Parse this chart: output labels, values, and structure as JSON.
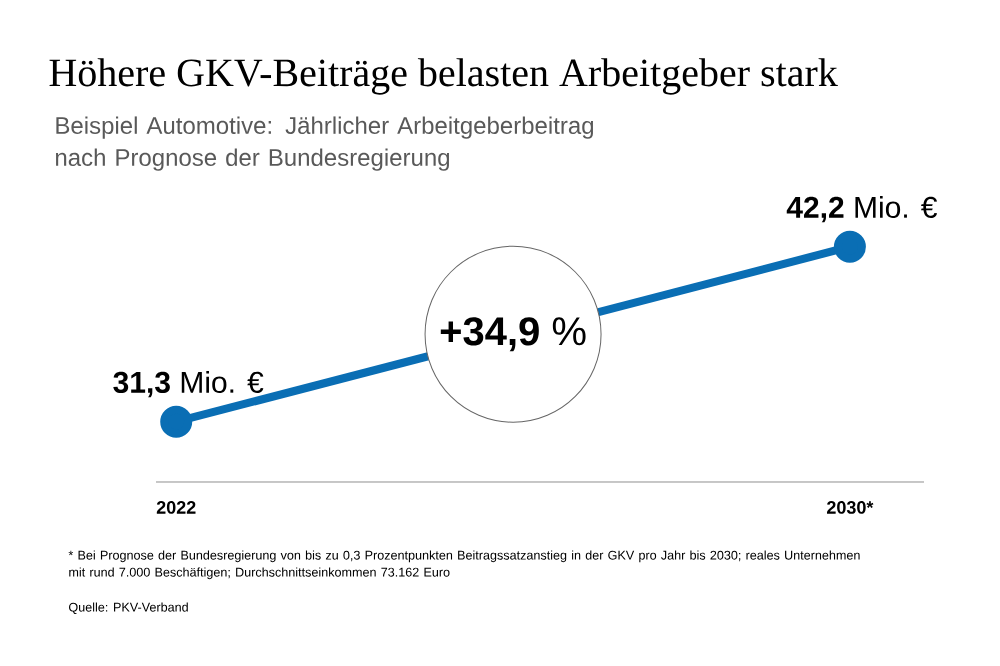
{
  "chart_data": {
    "type": "line",
    "title": "Höhere GKV-Beiträge belasten Arbeitgeber stark",
    "subtitle": "Beispiel Automotive: Jährlicher Arbeitgeberbeitrag nach Prognose der Bundesregierung",
    "categories": [
      "2022",
      "2030*"
    ],
    "series": [
      {
        "color": "#0a6eb4",
        "values": [
          31.3,
          42.2
        ],
        "value_labels": [
          "**31,3** Mio. €",
          "**42,2** Mio. €"
        ]
      }
    ],
    "marker": "circle",
    "line_style": "solid",
    "annotations": [
      "**+34,9** %",
      "* Bei Prognose der Bundesregierung von bis zu 0,3 Prozentpunkten Beitragssatzanstieg in der GKV pro Jahr bis 2030; reales Unternehmen mit rund 7.000 Beschäftigen; Durchschnittseinkommen 73.162 Euro",
      "Quelle: PKV-Verband"
    ]
  }
}
